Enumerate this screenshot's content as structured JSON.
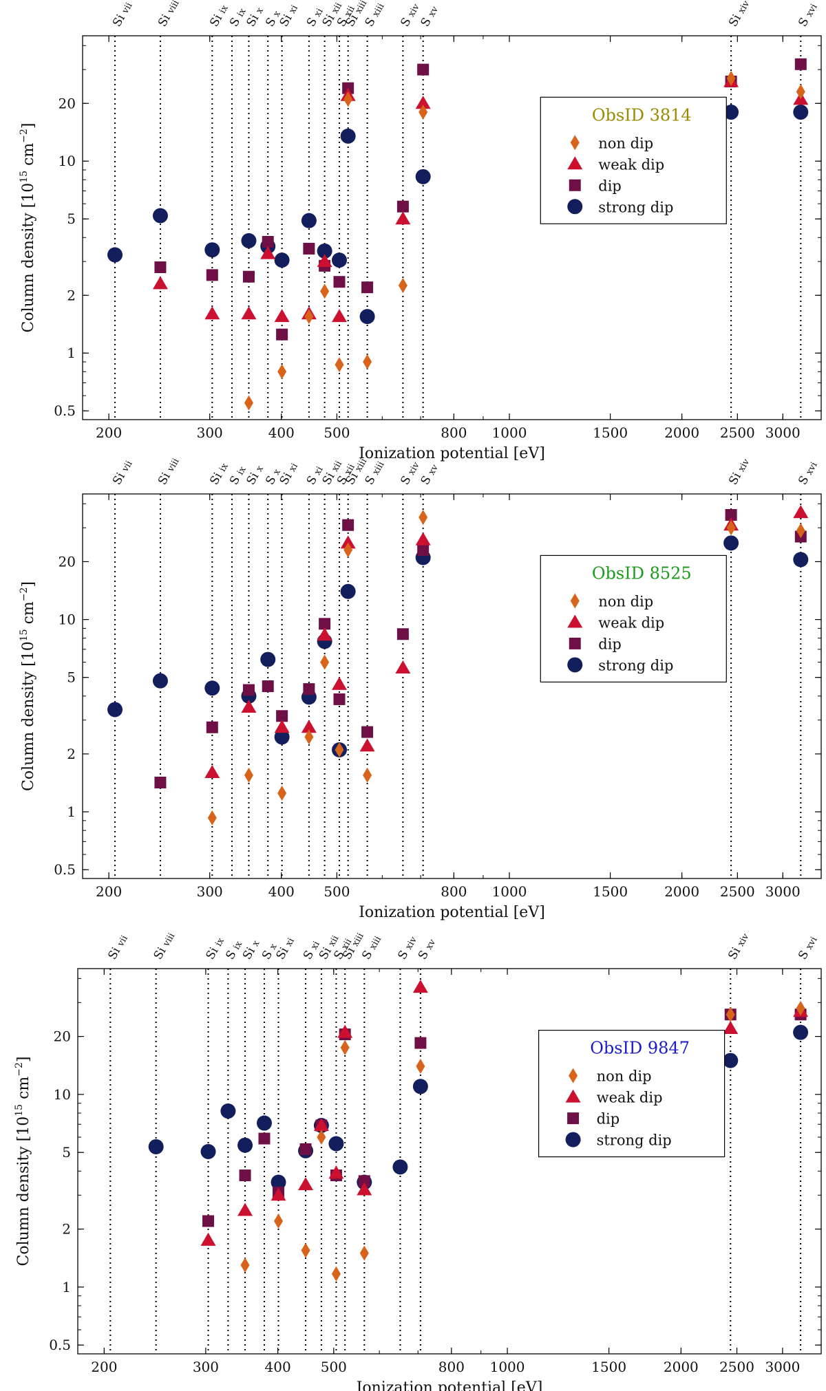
{
  "chart_data": [
    {
      "type": "scatter",
      "xscale": "log",
      "yscale": "log",
      "xlabel": "Ionization potential [eV]",
      "ylabel": "Column density [10^15 cm^-2]",
      "ylabel_parts": {
        "main": "Column density [10",
        "exp1": "15",
        "mid": " cm",
        "exp2": "−2",
        "end": "]"
      },
      "xlim": [
        180,
        3500
      ],
      "ylim": [
        0.45,
        45
      ],
      "xticks": [
        {
          "v": 200,
          "l": "200"
        },
        {
          "v": 300,
          "l": "300"
        },
        {
          "v": 400,
          "l": "400"
        },
        {
          "v": 500,
          "l": "500"
        },
        {
          "v": 800,
          "l": "800"
        },
        {
          "v": 1000,
          "l": "1000"
        },
        {
          "v": 1500,
          "l": "1500"
        },
        {
          "v": 2000,
          "l": "2000"
        },
        {
          "v": 2500,
          "l": "2500"
        },
        {
          "v": 3000,
          "l": "3000"
        }
      ],
      "yticks": [
        {
          "v": 0.5,
          "l": "0.5"
        },
        {
          "v": 1,
          "l": "1"
        },
        {
          "v": 2,
          "l": "2"
        },
        {
          "v": 5,
          "l": "5"
        },
        {
          "v": 10,
          "l": "10"
        },
        {
          "v": 20,
          "l": "20"
        }
      ],
      "ions": [
        {
          "label": "Si VII",
          "x": 205
        },
        {
          "label": "Si VIII",
          "x": 246
        },
        {
          "label": "Si IX",
          "x": 303
        },
        {
          "label": "S IX",
          "x": 328
        },
        {
          "label": "Si X",
          "x": 351
        },
        {
          "label": "S X",
          "x": 379
        },
        {
          "label": "Si XI",
          "x": 401
        },
        {
          "label": "S XI",
          "x": 447
        },
        {
          "label": "Si XII",
          "x": 476
        },
        {
          "label": "S XII",
          "x": 505
        },
        {
          "label": "Si XIII",
          "x": 523
        },
        {
          "label": "S XIII",
          "x": 565
        },
        {
          "label": "S XIV",
          "x": 652
        },
        {
          "label": "S XV",
          "x": 707
        },
        {
          "label": "Si XIV",
          "x": 2437
        },
        {
          "label": "S XVI",
          "x": 3224
        }
      ],
      "legend": {
        "title": "ObsID 3814",
        "title_color": "#9a8a00",
        "position": "center-right"
      },
      "series": [
        {
          "name": "non dip",
          "marker": "diamond",
          "color": "#d8641c",
          "x": [
            351,
            401,
            447,
            476,
            505,
            523,
            565,
            652,
            707,
            2437,
            3224
          ],
          "y": [
            0.55,
            0.8,
            1.55,
            2.1,
            0.87,
            21,
            0.9,
            2.25,
            18,
            27,
            23
          ]
        },
        {
          "name": "weak dip",
          "marker": "triangle",
          "color": "#cc1030",
          "x": [
            246,
            303,
            351,
            379,
            401,
            447,
            476,
            505,
            523,
            652,
            707,
            2437,
            3224
          ],
          "y": [
            2.3,
            1.6,
            1.6,
            3.3,
            1.55,
            1.6,
            3.0,
            1.55,
            22,
            5.0,
            20,
            26,
            21
          ]
        },
        {
          "name": "dip",
          "marker": "square",
          "color": "#6e0f45",
          "x": [
            246,
            303,
            351,
            379,
            401,
            447,
            476,
            505,
            523,
            565,
            652,
            707,
            2437,
            3224
          ],
          "y": [
            2.8,
            2.55,
            2.5,
            3.8,
            1.25,
            3.5,
            2.85,
            2.35,
            24,
            2.2,
            5.8,
            30,
            26,
            32
          ]
        },
        {
          "name": "strong dip",
          "marker": "circle",
          "color": "#131f5c",
          "x": [
            205,
            246,
            303,
            351,
            379,
            401,
            447,
            476,
            505,
            523,
            565,
            707,
            2437,
            3224
          ],
          "y": [
            3.25,
            5.2,
            3.45,
            3.85,
            3.6,
            3.05,
            4.9,
            3.4,
            3.05,
            13.5,
            1.55,
            8.3,
            18,
            18
          ]
        }
      ]
    },
    {
      "type": "scatter",
      "xscale": "log",
      "yscale": "log",
      "xlabel": "Ionization potential [eV]",
      "ylabel": "Column density [10^15 cm^-2]",
      "ylabel_parts": {
        "main": "Column density [10",
        "exp1": "15",
        "mid": " cm",
        "exp2": "−2",
        "end": "]"
      },
      "xlim": [
        180,
        3500
      ],
      "ylim": [
        0.45,
        45
      ],
      "xticks": [
        {
          "v": 200,
          "l": "200"
        },
        {
          "v": 300,
          "l": "300"
        },
        {
          "v": 400,
          "l": "400"
        },
        {
          "v": 500,
          "l": "500"
        },
        {
          "v": 800,
          "l": "800"
        },
        {
          "v": 1000,
          "l": "1000"
        },
        {
          "v": 1500,
          "l": "1500"
        },
        {
          "v": 2000,
          "l": "2000"
        },
        {
          "v": 2500,
          "l": "2500"
        },
        {
          "v": 3000,
          "l": "3000"
        }
      ],
      "yticks": [
        {
          "v": 0.5,
          "l": "0.5"
        },
        {
          "v": 1,
          "l": "1"
        },
        {
          "v": 2,
          "l": "2"
        },
        {
          "v": 5,
          "l": "5"
        },
        {
          "v": 10,
          "l": "10"
        },
        {
          "v": 20,
          "l": "20"
        }
      ],
      "ions": [
        {
          "label": "Si VII",
          "x": 205
        },
        {
          "label": "Si VIII",
          "x": 246
        },
        {
          "label": "Si IX",
          "x": 303
        },
        {
          "label": "S IX",
          "x": 328
        },
        {
          "label": "Si X",
          "x": 351
        },
        {
          "label": "S X",
          "x": 379
        },
        {
          "label": "Si XI",
          "x": 401
        },
        {
          "label": "S XI",
          "x": 447
        },
        {
          "label": "Si XII",
          "x": 476
        },
        {
          "label": "S XII",
          "x": 505
        },
        {
          "label": "Si XIII",
          "x": 523
        },
        {
          "label": "S XIII",
          "x": 565
        },
        {
          "label": "S XIV",
          "x": 652
        },
        {
          "label": "S XV",
          "x": 707
        },
        {
          "label": "Si XIV",
          "x": 2437
        },
        {
          "label": "S XVI",
          "x": 3224
        }
      ],
      "legend": {
        "title": "ObsID 8525",
        "title_color": "#1a9a1a",
        "position": "center-right"
      },
      "series": [
        {
          "name": "non dip",
          "marker": "diamond",
          "color": "#d8641c",
          "x": [
            303,
            351,
            401,
            447,
            476,
            505,
            523,
            565,
            707,
            2437,
            3224
          ],
          "y": [
            0.93,
            1.55,
            1.25,
            2.45,
            6.0,
            2.1,
            23,
            1.55,
            34,
            30,
            29
          ]
        },
        {
          "name": "weak dip",
          "marker": "triangle",
          "color": "#cc1030",
          "x": [
            303,
            351,
            401,
            447,
            476,
            505,
            523,
            565,
            652,
            707,
            2437,
            3224
          ],
          "y": [
            1.6,
            3.5,
            2.75,
            2.75,
            8.3,
            4.6,
            25,
            2.2,
            5.6,
            26,
            31,
            36
          ]
        },
        {
          "name": "dip",
          "marker": "square",
          "color": "#6e0f45",
          "x": [
            246,
            303,
            351,
            379,
            401,
            447,
            476,
            505,
            523,
            565,
            652,
            707,
            2437,
            3224
          ],
          "y": [
            1.42,
            2.75,
            4.3,
            4.5,
            3.15,
            4.35,
            9.5,
            3.85,
            31,
            2.6,
            8.4,
            23,
            35,
            27
          ]
        },
        {
          "name": "strong dip",
          "marker": "circle",
          "color": "#131f5c",
          "x": [
            205,
            246,
            303,
            351,
            379,
            401,
            447,
            476,
            505,
            523,
            707,
            2437,
            3224
          ],
          "y": [
            3.4,
            4.8,
            4.4,
            4.0,
            6.2,
            2.45,
            3.95,
            7.7,
            2.1,
            14,
            21,
            25,
            20.5
          ]
        }
      ]
    },
    {
      "type": "scatter",
      "xscale": "log",
      "yscale": "log",
      "xlabel": "Ionization potential [eV]",
      "ylabel": "Column density [10^15 cm^-2]",
      "ylabel_parts": {
        "main": "Column density [10",
        "exp1": "15",
        "mid": " cm",
        "exp2": "−2",
        "end": "]"
      },
      "xlim": [
        180,
        3500
      ],
      "ylim": [
        0.45,
        45
      ],
      "xticks": [
        {
          "v": 200,
          "l": "200"
        },
        {
          "v": 300,
          "l": "300"
        },
        {
          "v": 400,
          "l": "400"
        },
        {
          "v": 500,
          "l": "500"
        },
        {
          "v": 800,
          "l": "800"
        },
        {
          "v": 1000,
          "l": "1000"
        },
        {
          "v": 1500,
          "l": "1500"
        },
        {
          "v": 2000,
          "l": "2000"
        },
        {
          "v": 2500,
          "l": "2500"
        },
        {
          "v": 3000,
          "l": "3000"
        }
      ],
      "yticks": [
        {
          "v": 0.5,
          "l": "0.5"
        },
        {
          "v": 1,
          "l": "1"
        },
        {
          "v": 2,
          "l": "2"
        },
        {
          "v": 5,
          "l": "5"
        },
        {
          "v": 10,
          "l": "10"
        },
        {
          "v": 20,
          "l": "20"
        }
      ],
      "ions": [
        {
          "label": "Si VII",
          "x": 205
        },
        {
          "label": "Si VIII",
          "x": 246
        },
        {
          "label": "Si IX",
          "x": 303
        },
        {
          "label": "S IX",
          "x": 328
        },
        {
          "label": "Si X",
          "x": 351
        },
        {
          "label": "S X",
          "x": 379
        },
        {
          "label": "Si XI",
          "x": 401
        },
        {
          "label": "S XI",
          "x": 447
        },
        {
          "label": "Si XII",
          "x": 476
        },
        {
          "label": "S XII",
          "x": 505
        },
        {
          "label": "Si XIII",
          "x": 523
        },
        {
          "label": "S XIII",
          "x": 565
        },
        {
          "label": "S XIV",
          "x": 652
        },
        {
          "label": "S XV",
          "x": 707
        },
        {
          "label": "Si XIV",
          "x": 2437
        },
        {
          "label": "S XVI",
          "x": 3224
        }
      ],
      "legend": {
        "title": "ObsID 9847",
        "title_color": "#1a1acc",
        "position": "center-right"
      },
      "series": [
        {
          "name": "non dip",
          "marker": "diamond",
          "color": "#d8641c",
          "x": [
            351,
            401,
            447,
            476,
            505,
            523,
            565,
            707,
            2437,
            3224
          ],
          "y": [
            1.3,
            2.2,
            1.55,
            6.0,
            1.17,
            17.5,
            1.5,
            14,
            26,
            28
          ]
        },
        {
          "name": "weak dip",
          "marker": "triangle",
          "color": "#cc1030",
          "x": [
            303,
            351,
            401,
            447,
            476,
            505,
            523,
            565,
            707,
            2437,
            3224
          ],
          "y": [
            1.75,
            2.5,
            3.0,
            3.4,
            6.9,
            3.9,
            21,
            3.2,
            36,
            22,
            27
          ]
        },
        {
          "name": "dip",
          "marker": "square",
          "color": "#6e0f45",
          "x": [
            303,
            351,
            379,
            401,
            447,
            476,
            505,
            523,
            565,
            707,
            2437,
            3224
          ],
          "y": [
            2.2,
            3.8,
            5.9,
            3.1,
            5.2,
            6.9,
            3.8,
            20.5,
            3.55,
            18.5,
            26,
            26
          ]
        },
        {
          "name": "strong dip",
          "marker": "circle",
          "color": "#131f5c",
          "x": [
            246,
            303,
            328,
            351,
            379,
            401,
            447,
            476,
            505,
            565,
            652,
            707,
            2437,
            3224
          ],
          "y": [
            5.35,
            5.05,
            8.2,
            5.45,
            7.1,
            3.5,
            5.1,
            6.9,
            5.55,
            3.5,
            4.2,
            11,
            15,
            21
          ]
        }
      ]
    }
  ]
}
